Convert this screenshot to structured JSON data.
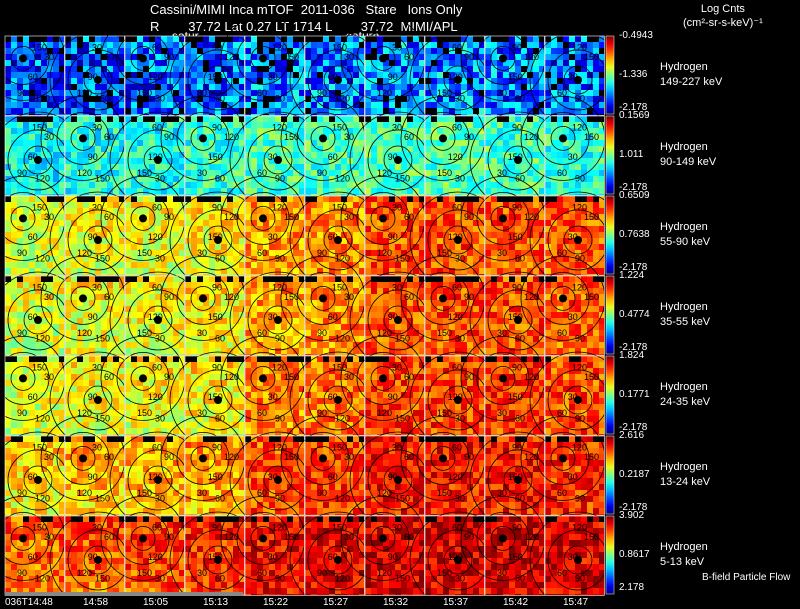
{
  "header": {
    "title_line1": "Cassini/MIMI Inca mTOF  2011-036   Stare   Ions Only",
    "title_line2": "R        37.72 Lat 0.27 LT 1714 L        37.72  MIMI/APL",
    "units_line1": "Log Cnts",
    "units_line2": "(cm²-sr-s-keV)⁻¹",
    "overlay_labels": [
      "satur",
      "saturn"
    ]
  },
  "footer_note": "B-field Particle Flow",
  "chart_data": {
    "type": "heatmap",
    "title": "Cassini/MIMI Inca mTOF  2011-036   Stare   Ions Only",
    "colorbar_label": "Log Cnts (cm2-sr-s-keV)-1",
    "columns": [
      "036T14:48",
      "14:58",
      "15:05",
      "15:13",
      "15:22",
      "15:27",
      "15:32",
      "15:37",
      "15:42",
      "15:47"
    ],
    "contour_labels": [
      "30",
      "60",
      "90",
      "120",
      "150"
    ],
    "rows": [
      {
        "species": "Hydrogen",
        "energy": "149-227 keV",
        "cb_max": "-0.4943",
        "cb_mid": "-1.336",
        "cb_min": "-2.178",
        "level": [
          0.2,
          0.2,
          0.22,
          0.22,
          0.24,
          0.24,
          0.26,
          0.26,
          0.24,
          0.22
        ]
      },
      {
        "species": "Hydrogen",
        "energy": "90-149 keV",
        "cb_max": "0.1569",
        "cb_mid": "1.011",
        "cb_min": "-2.178",
        "level": [
          0.38,
          0.4,
          0.4,
          0.42,
          0.44,
          0.44,
          0.46,
          0.46,
          0.44,
          0.42
        ]
      },
      {
        "species": "Hydrogen",
        "energy": "55-90 keV",
        "cb_max": "0.6509",
        "cb_mid": "0.7638",
        "cb_min": "-2.178",
        "level": [
          0.62,
          0.64,
          0.64,
          0.66,
          0.72,
          0.74,
          0.8,
          0.8,
          0.8,
          0.78
        ]
      },
      {
        "species": "Hydrogen",
        "energy": "35-55 keV",
        "cb_max": "1.224",
        "cb_mid": "0.4774",
        "cb_min": "-2.178",
        "level": [
          0.62,
          0.64,
          0.64,
          0.66,
          0.72,
          0.74,
          0.8,
          0.8,
          0.8,
          0.78
        ]
      },
      {
        "species": "Hydrogen",
        "energy": "24-35 keV",
        "cb_max": "1.824",
        "cb_mid": "0.1771",
        "cb_min": "-2.178",
        "level": [
          0.62,
          0.64,
          0.64,
          0.66,
          0.74,
          0.76,
          0.82,
          0.82,
          0.82,
          0.8
        ]
      },
      {
        "species": "Hydrogen",
        "energy": "13-24 keV",
        "cb_max": "2.616",
        "cb_mid": "0.2187",
        "cb_min": "-2.178",
        "level": [
          0.68,
          0.72,
          0.72,
          0.74,
          0.8,
          0.82,
          0.86,
          0.86,
          0.86,
          0.84
        ]
      },
      {
        "species": "Hydrogen",
        "energy": "5-13 keV",
        "cb_max": "3.902",
        "cb_mid": "0.8617",
        "cb_min": "2.178",
        "level": [
          0.8,
          0.82,
          0.84,
          0.86,
          0.88,
          0.9,
          0.92,
          0.92,
          0.92,
          0.9
        ]
      }
    ]
  }
}
